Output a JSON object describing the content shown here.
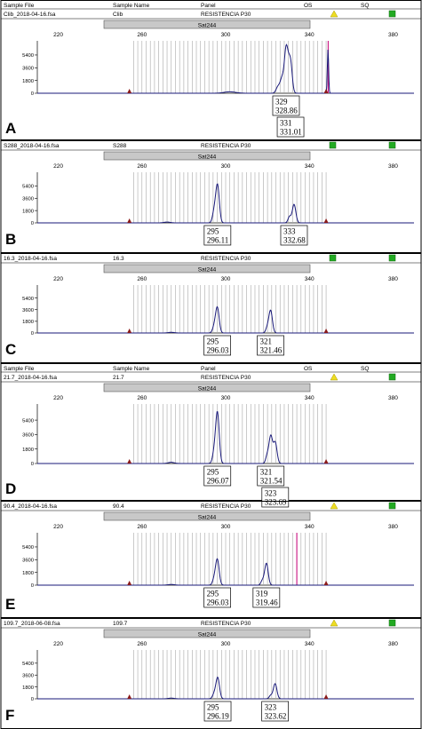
{
  "header": {
    "sample_file": "Sample File",
    "sample_name": "Sample Name",
    "panel": "Panel",
    "os": "OS",
    "sq": "SQ"
  },
  "marker": "Sat244",
  "colors": {
    "trace": "#1a1a7a",
    "bin_line": "#a8a8a8",
    "marker_bar": "#c8c8c8",
    "status_green": "#22aa22",
    "status_yellow": "#eedd22",
    "peak_marker": "#8a1a1a",
    "extra_line": "#cc2288"
  },
  "chart_data": [
    {
      "type": "line",
      "panel_letter": "A",
      "file": "Clib_2018-04-16.fsa",
      "name": "Clib",
      "panel": "RESISTENCIA P30",
      "show_col_header": true,
      "os": "yellow",
      "sq": "green",
      "x_ticks": [
        220,
        260,
        300,
        340,
        380
      ],
      "xlim": [
        210,
        390
      ],
      "y_ticks": [
        "0",
        "1800",
        "3600",
        "5400"
      ],
      "ylim": [
        0,
        7400
      ],
      "extra_line_x": 349,
      "peaks": [
        {
          "x": 302,
          "h": 200,
          "w": 2.8
        },
        {
          "x": 325,
          "h": 900,
          "w": 0.9
        },
        {
          "x": 327,
          "h": 2100,
          "w": 0.9
        },
        {
          "x": 328.86,
          "h": 5800,
          "w": 0.8
        },
        {
          "x": 329.9,
          "h": 1800,
          "w": 0.7
        },
        {
          "x": 331.01,
          "h": 4300,
          "w": 0.8
        },
        {
          "x": 348.9,
          "h": 6200,
          "w": 0.3
        }
      ],
      "labels": [
        {
          "allele": "329",
          "size": "328.86"
        },
        {
          "allele": "331",
          "size": "331.01"
        }
      ]
    },
    {
      "type": "line",
      "panel_letter": "B",
      "file": "S288_2018-04-16.fsa",
      "name": "S288",
      "panel": "RESISTENCIA P30",
      "show_col_header": false,
      "os": "green",
      "sq": "green",
      "x_ticks": [
        220,
        260,
        300,
        340,
        380
      ],
      "xlim": [
        210,
        390
      ],
      "y_ticks": [
        "0",
        "1800",
        "3600",
        "5400"
      ],
      "ylim": [
        0,
        7400
      ],
      "peaks": [
        {
          "x": 272,
          "h": 120,
          "w": 1.5
        },
        {
          "x": 294.5,
          "h": 1600,
          "w": 0.8
        },
        {
          "x": 296.11,
          "h": 5500,
          "w": 0.85
        },
        {
          "x": 330.5,
          "h": 900,
          "w": 0.7
        },
        {
          "x": 332.68,
          "h": 2700,
          "w": 0.85
        }
      ],
      "labels": [
        {
          "allele": "295",
          "size": "296.11"
        },
        {
          "allele": "333",
          "size": "332.68"
        }
      ]
    },
    {
      "type": "line",
      "panel_letter": "C",
      "file": "16.3_2018-04-16.fsa",
      "name": "16.3",
      "panel": "RESISTENCIA P30",
      "show_col_header": false,
      "os": "green",
      "sq": "green",
      "x_ticks": [
        220,
        260,
        300,
        340,
        380
      ],
      "xlim": [
        210,
        390
      ],
      "y_ticks": [
        "0",
        "1800",
        "3600",
        "5400"
      ],
      "ylim": [
        0,
        7400
      ],
      "peaks": [
        {
          "x": 274,
          "h": 100,
          "w": 1.5
        },
        {
          "x": 294.5,
          "h": 900,
          "w": 0.8
        },
        {
          "x": 296.03,
          "h": 3900,
          "w": 0.85
        },
        {
          "x": 319.8,
          "h": 700,
          "w": 0.7
        },
        {
          "x": 321.46,
          "h": 3500,
          "w": 0.85
        }
      ],
      "labels": [
        {
          "allele": "295",
          "size": "296.03"
        },
        {
          "allele": "321",
          "size": "321.46"
        }
      ]
    },
    {
      "type": "line",
      "panel_letter": "D",
      "file": "21.7_2018-04-16.fsa",
      "name": "21.7",
      "panel": "RESISTENCIA P30",
      "show_col_header": true,
      "os": "yellow",
      "sq": "green",
      "x_ticks": [
        220,
        260,
        300,
        340,
        380
      ],
      "xlim": [
        210,
        390
      ],
      "y_ticks": [
        "0",
        "1800",
        "3600",
        "5400"
      ],
      "ylim": [
        0,
        7400
      ],
      "peaks": [
        {
          "x": 274,
          "h": 150,
          "w": 1.5
        },
        {
          "x": 294.5,
          "h": 1300,
          "w": 0.8
        },
        {
          "x": 296.07,
          "h": 6300,
          "w": 0.85
        },
        {
          "x": 319.8,
          "h": 900,
          "w": 0.7
        },
        {
          "x": 321.54,
          "h": 3400,
          "w": 0.85
        },
        {
          "x": 323.69,
          "h": 2600,
          "w": 0.85
        }
      ],
      "labels": [
        {
          "allele": "295",
          "size": "296.07"
        },
        {
          "allele": "321",
          "size": "321.54"
        },
        {
          "allele": "323",
          "size": "323.69"
        }
      ]
    },
    {
      "type": "line",
      "panel_letter": "E",
      "file": "90.4_2018-04-16.fsa",
      "name": "90.4",
      "panel": "RESISTENCIA P30",
      "show_col_header": false,
      "os": "yellow",
      "sq": "green",
      "x_ticks": [
        220,
        260,
        300,
        340,
        380
      ],
      "xlim": [
        210,
        390
      ],
      "y_ticks": [
        "0",
        "1800",
        "3600",
        "5400"
      ],
      "ylim": [
        0,
        7400
      ],
      "extra_line_x": 334,
      "peaks": [
        {
          "x": 274,
          "h": 100,
          "w": 1.5
        },
        {
          "x": 294.5,
          "h": 800,
          "w": 0.8
        },
        {
          "x": 296.03,
          "h": 3600,
          "w": 0.85
        },
        {
          "x": 317.5,
          "h": 600,
          "w": 0.7
        },
        {
          "x": 319.46,
          "h": 3100,
          "w": 0.85
        }
      ],
      "labels": [
        {
          "allele": "295",
          "size": "296.03"
        },
        {
          "allele": "319",
          "size": "319.46"
        }
      ]
    },
    {
      "type": "line",
      "panel_letter": "F",
      "file": "109.7_2018-06-08.fsa",
      "name": "109.7",
      "panel": "RESISTENCIA P30",
      "show_col_header": false,
      "os": "yellow",
      "sq": "green",
      "x_ticks": [
        220,
        260,
        300,
        340,
        380
      ],
      "xlim": [
        210,
        390
      ],
      "y_ticks": [
        "0",
        "1800",
        "3600",
        "5400"
      ],
      "ylim": [
        0,
        7400
      ],
      "peaks": [
        {
          "x": 274,
          "h": 100,
          "w": 1.5
        },
        {
          "x": 294.5,
          "h": 700,
          "w": 0.8
        },
        {
          "x": 296.19,
          "h": 3200,
          "w": 0.85
        },
        {
          "x": 321.5,
          "h": 500,
          "w": 0.7
        },
        {
          "x": 323.62,
          "h": 2300,
          "w": 0.85
        }
      ],
      "labels": [
        {
          "allele": "295",
          "size": "296.19"
        },
        {
          "allele": "323",
          "size": "323.62"
        }
      ]
    }
  ]
}
